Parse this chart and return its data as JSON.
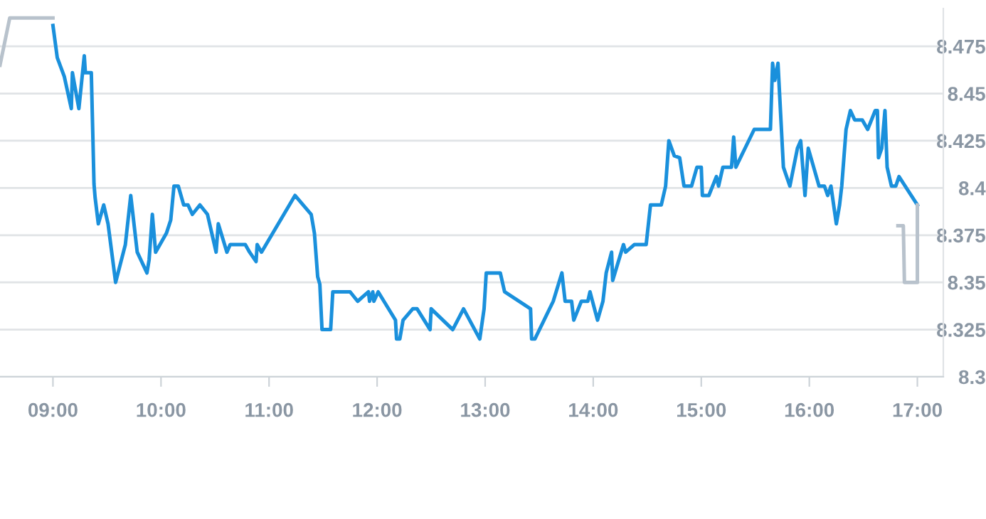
{
  "chart_data": {
    "type": "line",
    "xlim": [
      8.51,
      17.24
    ],
    "ylim": [
      8.3,
      8.495
    ],
    "xticks": [
      {
        "value": 9,
        "label": "09:00"
      },
      {
        "value": 10,
        "label": "10:00"
      },
      {
        "value": 11,
        "label": "11:00"
      },
      {
        "value": 12,
        "label": "12:00"
      },
      {
        "value": 13,
        "label": "13:00"
      },
      {
        "value": 14,
        "label": "14:00"
      },
      {
        "value": 15,
        "label": "15:00"
      },
      {
        "value": 16,
        "label": "16:00"
      },
      {
        "value": 17,
        "label": "17:00"
      }
    ],
    "yticks": [
      8.3,
      8.325,
      8.35,
      8.375,
      8.4,
      8.425,
      8.45,
      8.475
    ],
    "grid": "y",
    "marker": "none",
    "line_style": "solid",
    "series": [
      {
        "color": "#b8c2cc",
        "x": [
          8.51,
          8.6,
          9.0
        ],
        "values": [
          8.465,
          8.49,
          8.49
        ]
      },
      {
        "color": "#1a90dc",
        "x": [
          9.0,
          9.04,
          9.105,
          9.17,
          9.18,
          9.24,
          9.29,
          9.3,
          9.355,
          9.38,
          9.39,
          9.42,
          9.47,
          9.51,
          9.58,
          9.67,
          9.72,
          9.78,
          9.87,
          9.89,
          9.92,
          9.95,
          10.05,
          10.09,
          10.12,
          10.16,
          10.21,
          10.25,
          10.29,
          10.36,
          10.43,
          10.51,
          10.53,
          10.61,
          10.64,
          10.78,
          10.82,
          10.88,
          10.89,
          10.93,
          11.24,
          11.39,
          11.42,
          11.45,
          11.47,
          11.49,
          11.57,
          11.59,
          11.75,
          11.82,
          11.92,
          11.93,
          11.96,
          11.97,
          12.01,
          12.17,
          12.18,
          12.21,
          12.24,
          12.33,
          12.37,
          12.49,
          12.5,
          12.7,
          12.8,
          12.95,
          12.99,
          13.01,
          13.14,
          13.18,
          13.42,
          13.43,
          13.46,
          13.63,
          13.71,
          13.74,
          13.8,
          13.82,
          13.89,
          13.95,
          13.97,
          14.04,
          14.09,
          14.12,
          14.17,
          14.18,
          14.28,
          14.3,
          14.38,
          14.49,
          14.53,
          14.63,
          14.67,
          14.7,
          14.75,
          14.8,
          14.84,
          14.91,
          14.96,
          15.0,
          15.01,
          15.07,
          15.14,
          15.16,
          15.2,
          15.28,
          15.3,
          15.32,
          15.49,
          15.64,
          15.66,
          15.68,
          15.71,
          15.76,
          15.82,
          15.89,
          15.92,
          15.96,
          15.99,
          16.09,
          16.14,
          16.17,
          16.2,
          16.25,
          16.28,
          16.3,
          16.34,
          16.38,
          16.42,
          16.49,
          16.54,
          16.61,
          16.63,
          16.64,
          16.67,
          16.7,
          16.72,
          16.76,
          16.8,
          16.83,
          17.0
        ],
        "values": [
          8.486,
          8.469,
          8.459,
          8.442,
          8.461,
          8.442,
          8.47,
          8.461,
          8.461,
          8.402,
          8.395,
          8.381,
          8.391,
          8.381,
          8.35,
          8.37,
          8.396,
          8.366,
          8.355,
          8.362,
          8.386,
          8.366,
          8.376,
          8.383,
          8.401,
          8.401,
          8.391,
          8.391,
          8.386,
          8.391,
          8.386,
          8.366,
          8.381,
          8.366,
          8.37,
          8.37,
          8.366,
          8.361,
          8.37,
          8.366,
          8.396,
          8.386,
          8.376,
          8.353,
          8.349,
          8.325,
          8.325,
          8.345,
          8.345,
          8.34,
          8.345,
          8.34,
          8.345,
          8.34,
          8.345,
          8.33,
          8.32,
          8.32,
          8.33,
          8.336,
          8.336,
          8.325,
          8.336,
          8.325,
          8.336,
          8.32,
          8.336,
          8.355,
          8.355,
          8.345,
          8.336,
          8.32,
          8.32,
          8.34,
          8.355,
          8.34,
          8.34,
          8.33,
          8.34,
          8.34,
          8.345,
          8.33,
          8.34,
          8.355,
          8.366,
          8.351,
          8.37,
          8.366,
          8.37,
          8.37,
          8.391,
          8.391,
          8.401,
          8.425,
          8.417,
          8.416,
          8.401,
          8.401,
          8.411,
          8.411,
          8.396,
          8.396,
          8.406,
          8.401,
          8.411,
          8.411,
          8.427,
          8.411,
          8.431,
          8.431,
          8.466,
          8.457,
          8.466,
          8.411,
          8.401,
          8.421,
          8.425,
          8.396,
          8.421,
          8.401,
          8.401,
          8.396,
          8.401,
          8.381,
          8.391,
          8.401,
          8.431,
          8.441,
          8.436,
          8.436,
          8.431,
          8.441,
          8.441,
          8.416,
          8.421,
          8.441,
          8.411,
          8.401,
          8.401,
          8.406,
          8.391
        ]
      },
      {
        "color": "#b8c2cc",
        "x": [
          16.82,
          16.87,
          16.88,
          17.0,
          17.0
        ],
        "values": [
          8.38,
          8.38,
          8.35,
          8.35,
          8.391
        ]
      }
    ]
  }
}
